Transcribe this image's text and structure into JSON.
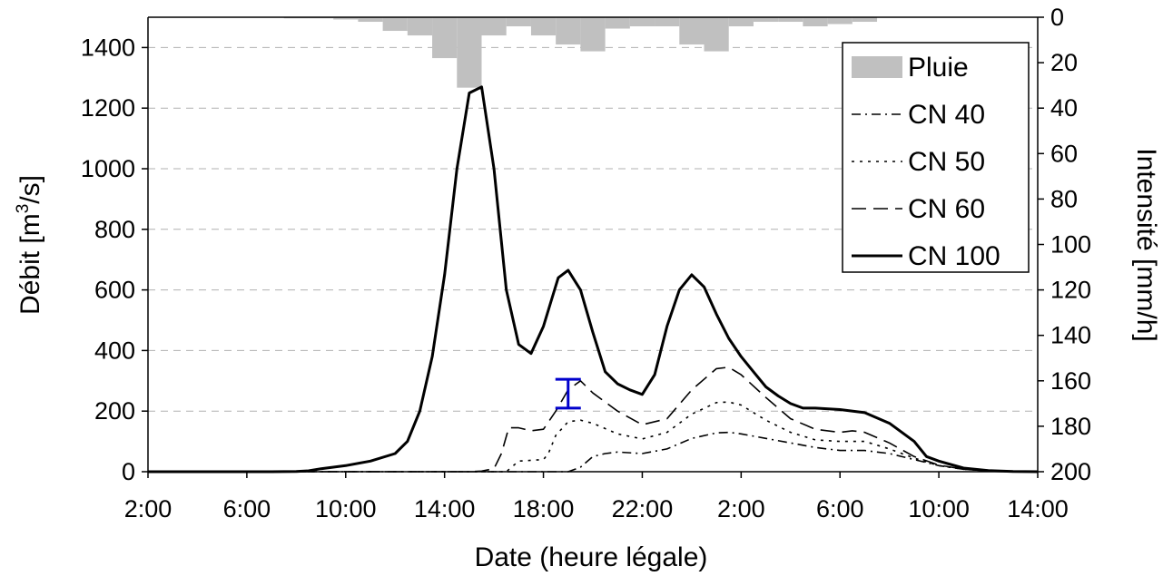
{
  "chart_data": {
    "type": "line",
    "title": "",
    "xlabel": "Date (heure légale)",
    "ylabel": "Débit [m³/s]",
    "ylabel_parts": {
      "before": "Débit [m",
      "sup": "3",
      "after": "/s]"
    },
    "y2label": "Intensité [mm/h]",
    "x_unit": "hours",
    "x_ticks": [
      {
        "x": 2,
        "label": "2:00"
      },
      {
        "x": 6,
        "label": "6:00"
      },
      {
        "x": 10,
        "label": "10:00"
      },
      {
        "x": 14,
        "label": "14:00"
      },
      {
        "x": 18,
        "label": "18:00"
      },
      {
        "x": 22,
        "label": "22:00"
      },
      {
        "x": 26,
        "label": "2:00"
      },
      {
        "x": 30,
        "label": "6:00"
      },
      {
        "x": 34,
        "label": "10:00"
      },
      {
        "x": 38,
        "label": "14:00"
      }
    ],
    "xlim": [
      2,
      38
    ],
    "y_ticks": [
      0,
      200,
      400,
      600,
      800,
      1000,
      1200,
      1400
    ],
    "ylim": [
      0,
      1500
    ],
    "y2_ticks": [
      0,
      20,
      40,
      60,
      80,
      100,
      120,
      140,
      160,
      180,
      200
    ],
    "y2lim": [
      0,
      200
    ],
    "y2_inverted": true,
    "grid": "horizontal dashed",
    "legend_position": "top-right",
    "rain": {
      "name": "Pluie",
      "color": "#c0c0c0",
      "bar_width_hours": 1,
      "x": [
        8,
        9,
        10,
        11,
        12,
        13,
        14,
        15,
        16,
        17,
        18,
        19,
        20,
        21,
        22,
        23,
        24,
        25,
        26,
        27,
        28,
        29,
        30,
        31
      ],
      "values": [
        0.5,
        0.5,
        1,
        2,
        6,
        8,
        18,
        31,
        8,
        4,
        8,
        12,
        15,
        5,
        4,
        4,
        12,
        15,
        4,
        2,
        2,
        4,
        3,
        2
      ]
    },
    "series": [
      {
        "name": "CN 40",
        "dash": "10,5,2,5",
        "x": [
          2,
          17,
          18,
          19,
          19.5,
          20,
          20.5,
          21,
          22,
          23,
          24,
          25,
          25.5,
          26,
          27,
          28,
          29,
          30,
          31,
          32,
          33,
          34,
          35,
          36,
          37,
          38
        ],
        "y": [
          0,
          0,
          0,
          0,
          15,
          50,
          60,
          65,
          60,
          75,
          110,
          128,
          130,
          125,
          110,
          95,
          80,
          70,
          70,
          60,
          40,
          20,
          8,
          3,
          1,
          0
        ]
      },
      {
        "name": "CN 50",
        "dash": "3,6",
        "x": [
          2,
          16.5,
          17,
          18,
          18.2,
          18.5,
          19,
          19.5,
          20,
          21,
          22,
          23,
          24,
          25,
          25.5,
          26,
          27,
          28,
          29,
          30,
          31,
          32,
          33,
          34,
          35,
          36,
          37,
          38
        ],
        "y": [
          0,
          0,
          35,
          40,
          60,
          120,
          165,
          170,
          160,
          125,
          108,
          130,
          190,
          228,
          230,
          220,
          170,
          130,
          105,
          100,
          100,
          75,
          45,
          20,
          8,
          3,
          1,
          0
        ]
      },
      {
        "name": "CN 60",
        "dash": "16,8",
        "x": [
          2,
          15,
          15.5,
          16,
          16.3,
          16.6,
          17,
          17.5,
          18,
          18.5,
          19,
          19.5,
          20,
          21,
          22,
          23,
          24,
          25,
          25.5,
          26,
          27,
          28,
          29,
          30,
          30.5,
          31,
          32,
          33,
          34,
          35,
          36,
          37,
          38
        ],
        "y": [
          0,
          0,
          2,
          10,
          60,
          145,
          145,
          135,
          140,
          200,
          270,
          300,
          260,
          200,
          155,
          175,
          270,
          340,
          345,
          320,
          245,
          175,
          140,
          130,
          135,
          130,
          95,
          50,
          22,
          8,
          3,
          1,
          0
        ]
      },
      {
        "name": "CN 100",
        "dash": "",
        "x": [
          2,
          7,
          8,
          8.5,
          9,
          10,
          11,
          12,
          12.5,
          13,
          13.5,
          14,
          14.5,
          15,
          15.5,
          16,
          16.5,
          17,
          17.5,
          18,
          18.3,
          18.6,
          19,
          19.5,
          20,
          20.5,
          21,
          21.5,
          22,
          22.5,
          23,
          23.5,
          24,
          24.5,
          25,
          25.5,
          26,
          26.5,
          27,
          27.5,
          28,
          28.5,
          29,
          30,
          31,
          32,
          32.5,
          33,
          33.5,
          34,
          35,
          36,
          37,
          38
        ],
        "y": [
          0,
          0,
          1,
          3,
          10,
          20,
          35,
          60,
          100,
          200,
          380,
          650,
          1000,
          1250,
          1270,
          1000,
          600,
          420,
          390,
          480,
          560,
          640,
          665,
          600,
          460,
          330,
          290,
          270,
          255,
          320,
          480,
          600,
          650,
          610,
          520,
          440,
          380,
          330,
          280,
          250,
          225,
          210,
          210,
          205,
          195,
          160,
          130,
          100,
          50,
          35,
          12,
          4,
          1,
          0
        ]
      }
    ],
    "error_bar": {
      "x": 19,
      "y_low": 210,
      "y_high": 305,
      "color": "#0000cc"
    }
  }
}
